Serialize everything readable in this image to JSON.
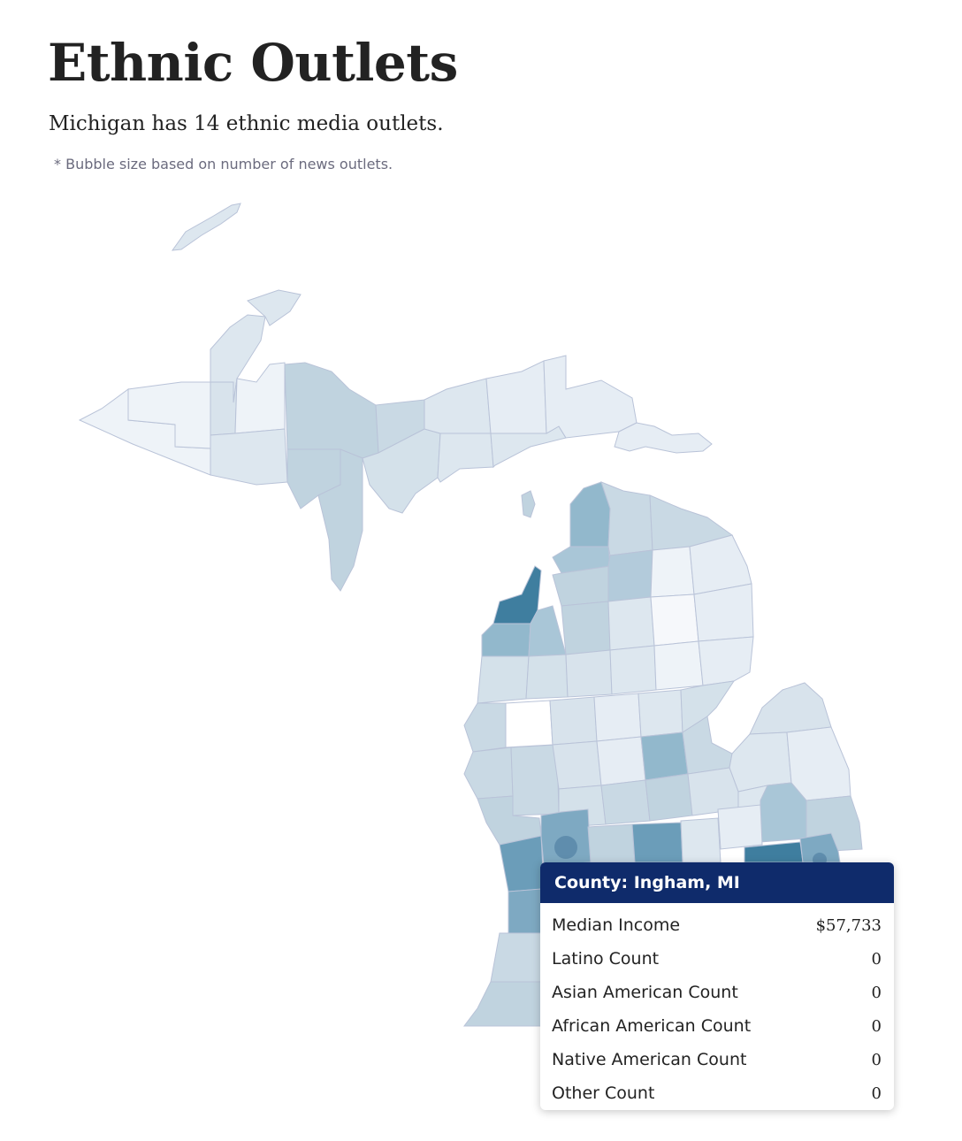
{
  "header": {
    "title": "Ethnic Outlets",
    "subtitle": "Michigan has 14 ethnic media outlets.",
    "note": "* Bubble size based on number of news outlets."
  },
  "map": {
    "state": "Michigan",
    "shading": "county choropleth",
    "colors": {
      "lightest": "#ffffff",
      "light": "#dde7ef",
      "medium": "#c0d3df",
      "strong": "#92b8cc",
      "darkest": "#3f7e9f",
      "border": "#b9c3d8",
      "bubble": "#5584a6"
    },
    "bubbles_visible": 2
  },
  "tooltip": {
    "title": "County: Ingham, MI",
    "rows": [
      {
        "label": "Median Income",
        "value": "$57,733"
      },
      {
        "label": "Latino Count",
        "value": "0"
      },
      {
        "label": "Asian American Count",
        "value": "0"
      },
      {
        "label": "African American Count",
        "value": "0"
      },
      {
        "label": "Native American Count",
        "value": "0"
      },
      {
        "label": "Other Count",
        "value": "0"
      }
    ]
  }
}
